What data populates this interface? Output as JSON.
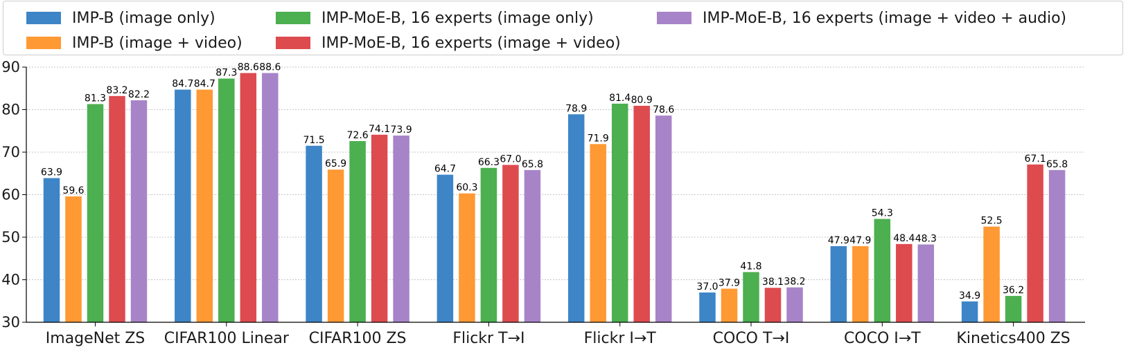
{
  "chart_data": {
    "type": "bar",
    "title": "",
    "xlabel": "",
    "ylabel": "",
    "ylim": [
      30,
      90
    ],
    "yticks": [
      30,
      40,
      50,
      60,
      70,
      80,
      90
    ],
    "grid": "y-dashed",
    "legend_position": "top",
    "categories": [
      "ImageNet ZS",
      "CIFAR100 Linear",
      "CIFAR100 ZS",
      "Flickr T→I",
      "Flickr I→T",
      "COCO T→I",
      "COCO I→T",
      "Kinetics400 ZS"
    ],
    "series": [
      {
        "name": "IMP-B (image only)",
        "color": "#3d85c6",
        "values": [
          63.9,
          84.7,
          71.5,
          64.7,
          78.9,
          37.0,
          47.9,
          34.9
        ],
        "labels": [
          "63.9",
          "84.7",
          "71.5",
          "64.7",
          "78.9",
          "37.0",
          "47.9",
          "34.9"
        ]
      },
      {
        "name": "IMP-B (image + video)",
        "color": "#ff9933",
        "values": [
          59.6,
          84.7,
          65.9,
          60.3,
          71.9,
          37.9,
          47.9,
          52.5
        ],
        "labels": [
          "59.6",
          "84.7",
          "65.9",
          "60.3",
          "71.9",
          "37.9",
          "47.9",
          "52.5"
        ]
      },
      {
        "name": "IMP-MoE-B, 16 experts (image only)",
        "color": "#4caf50",
        "values": [
          81.3,
          87.3,
          72.6,
          66.3,
          81.4,
          41.8,
          54.3,
          36.2
        ],
        "labels": [
          "81.3",
          "87.3",
          "72.6",
          "66.3",
          "81.4",
          "41.8",
          "54.3",
          "36.2"
        ]
      },
      {
        "name": "IMP-MoE-B, 16 experts (image + video)",
        "color": "#dd4b4f",
        "values": [
          83.2,
          88.6,
          74.1,
          67.0,
          80.9,
          38.1,
          48.4,
          67.1
        ],
        "labels": [
          "83.2",
          "88.6",
          "74.1",
          "67.0",
          "80.9",
          "38.1",
          "48.4",
          "67.1"
        ]
      },
      {
        "name": "IMP-MoE-B, 16 experts (image + video + audio)",
        "color": "#a784c8",
        "values": [
          82.2,
          88.6,
          73.9,
          65.8,
          78.6,
          38.2,
          48.3,
          65.8
        ],
        "labels": [
          "82.2",
          "88.6",
          "73.9",
          "65.8",
          "78.6",
          "38.2",
          "48.3",
          "65.8"
        ]
      }
    ]
  }
}
